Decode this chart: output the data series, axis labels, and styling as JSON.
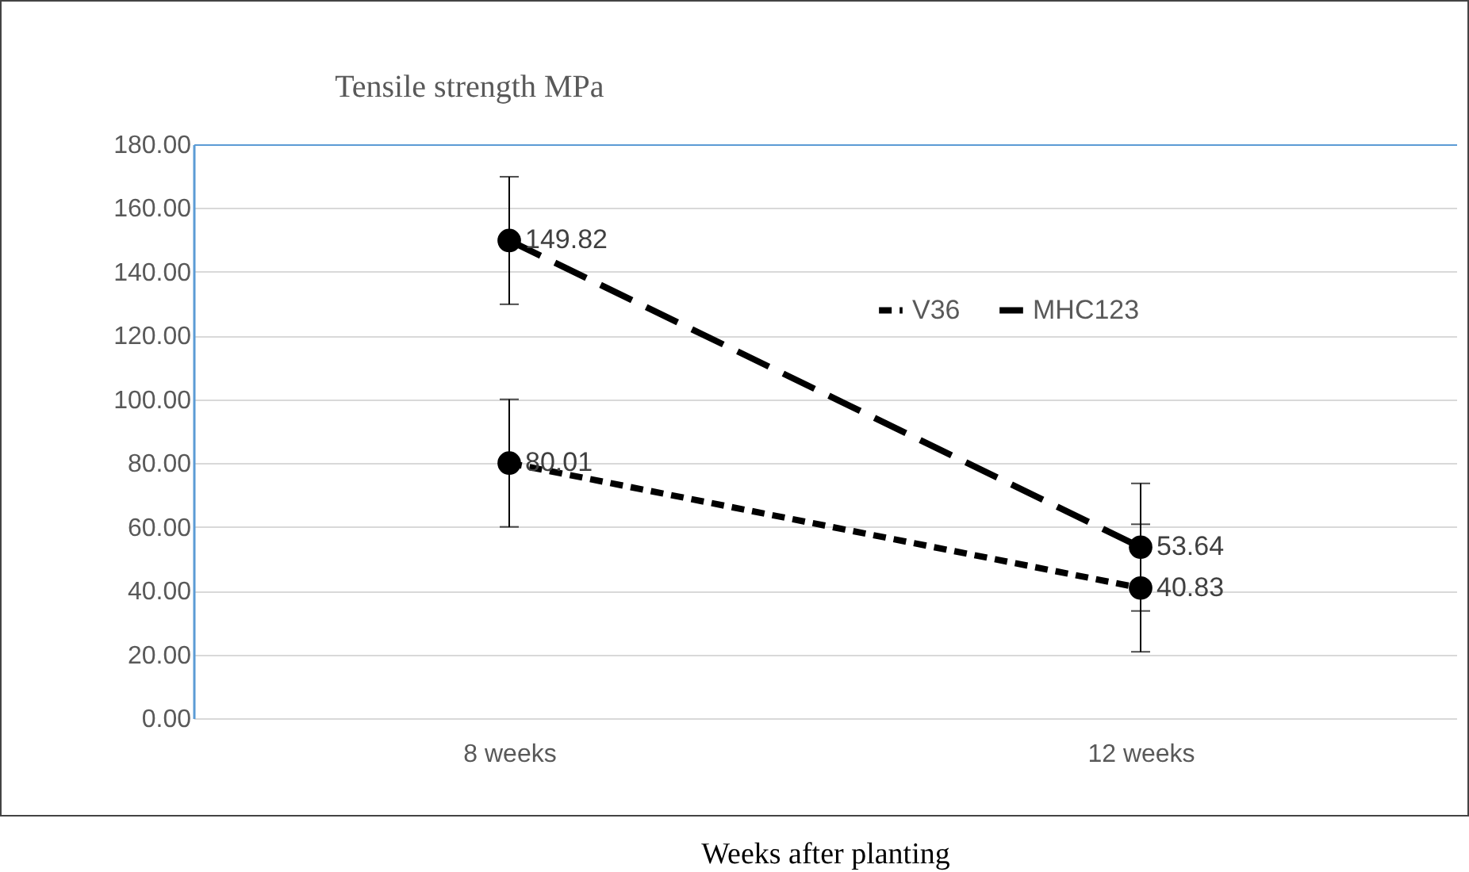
{
  "chart_data": {
    "type": "line",
    "title": "Tensile strength MPa",
    "xlabel": "Weeks after planting",
    "categories": [
      "8 weeks",
      "12 weeks"
    ],
    "series": [
      {
        "name": "V36",
        "color": "#000000",
        "values": [
          80.01,
          40.83
        ],
        "errors": [
          20,
          20
        ],
        "line_style": "dotted"
      },
      {
        "name": "MHC123",
        "color": "#000000",
        "values": [
          149.82,
          53.64
        ],
        "errors": [
          20,
          20
        ],
        "line_style": "dashed"
      }
    ],
    "ylim": [
      0,
      180
    ],
    "yticks": [
      {
        "value": 0,
        "label": "0.00"
      },
      {
        "value": 20,
        "label": "20.00"
      },
      {
        "value": 40,
        "label": "40.00"
      },
      {
        "value": 60,
        "label": "60.00"
      },
      {
        "value": 80,
        "label": "80.00"
      },
      {
        "value": 100,
        "label": "100.00"
      },
      {
        "value": 120,
        "label": "120.00"
      },
      {
        "value": 140,
        "label": "140.00"
      },
      {
        "value": 160,
        "label": "160.00"
      },
      {
        "value": 180,
        "label": "180.00"
      }
    ],
    "grid": "y",
    "legend": "top right",
    "marker": "circle",
    "data_labels": true
  }
}
